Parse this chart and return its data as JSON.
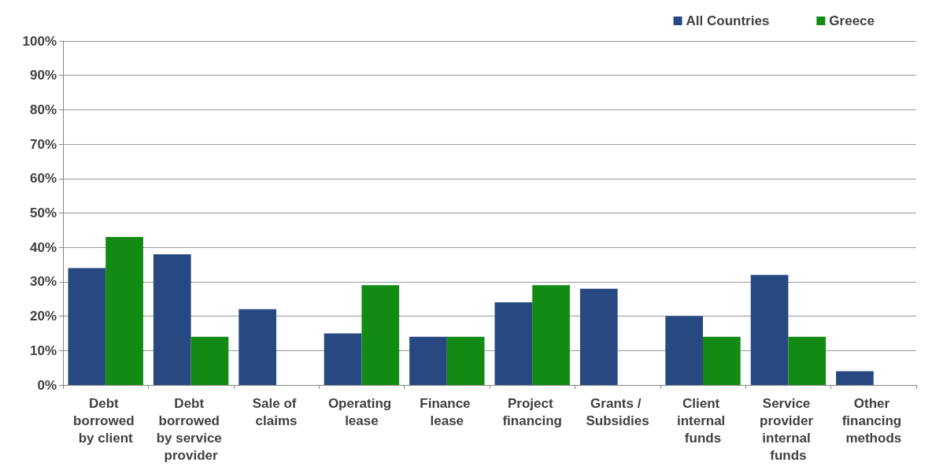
{
  "chart_data": {
    "type": "bar",
    "categories": [
      "Debt borrowed by client",
      "Debt borrowed by service provider",
      "Sale of claims",
      "Operating lease",
      "Finance lease",
      "Project financing",
      "Grants / Subsidies",
      "Client internal funds",
      "Service provider internal funds",
      "Other financing methods"
    ],
    "series": [
      {
        "name": "All Countries",
        "color": "#284882",
        "values": [
          34,
          38,
          22,
          15,
          14,
          24,
          28,
          20,
          32,
          4
        ]
      },
      {
        "name": "Greece",
        "color": "#138a13",
        "values": [
          43,
          14,
          0,
          29,
          14,
          29,
          0,
          14,
          14,
          0
        ]
      }
    ],
    "ylim": [
      0,
      100
    ],
    "yticks": [
      {
        "value": 0,
        "label": "0%"
      },
      {
        "value": 10,
        "label": "10%"
      },
      {
        "value": 20,
        "label": "20%"
      },
      {
        "value": 30,
        "label": "30%"
      },
      {
        "value": 40,
        "label": "40%"
      },
      {
        "value": 50,
        "label": "50%"
      },
      {
        "value": 60,
        "label": "60%"
      },
      {
        "value": 70,
        "label": "70%"
      },
      {
        "value": 80,
        "label": "80%"
      },
      {
        "value": 90,
        "label": "90%"
      },
      {
        "value": 100,
        "label": "100%"
      }
    ],
    "grid": "y",
    "legend": "top right"
  }
}
